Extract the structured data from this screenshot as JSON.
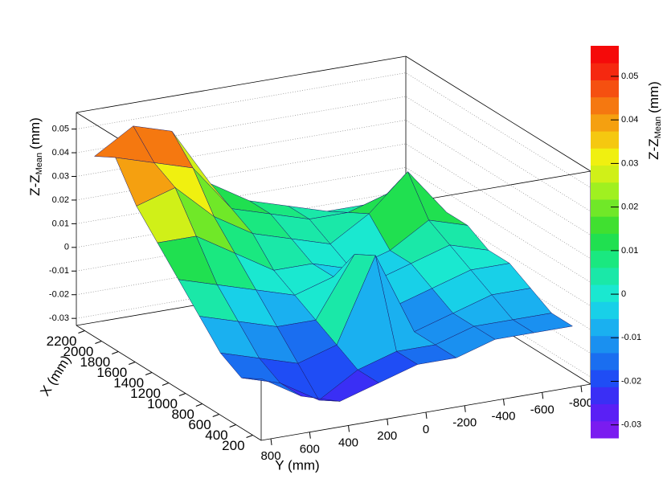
{
  "chart_data": {
    "type": "surface3d",
    "xlabel": "X (mm)",
    "ylabel": "Y (mm)",
    "zlabel": {
      "main": "Z-Z",
      "sub": "Mean",
      "unit": "(mm)"
    },
    "colorbar_label": {
      "main": "Z-Z",
      "sub": "Mean",
      "unit": "(mm)"
    },
    "xlim": [
      100,
      2300
    ],
    "ylim": [
      850,
      -850
    ],
    "zlim": [
      -0.033,
      0.057
    ],
    "xticks": [
      200,
      400,
      600,
      800,
      1000,
      1200,
      1400,
      1600,
      1800,
      2000,
      2200
    ],
    "yticks": [
      800,
      600,
      400,
      200,
      0,
      -200,
      -400,
      -600,
      -800
    ],
    "zticks": [
      -0.03,
      -0.02,
      -0.01,
      0,
      0.01,
      0.02,
      0.03,
      0.04,
      0.05
    ],
    "colorbar_ticks": [
      -0.03,
      -0.02,
      -0.01,
      0,
      0.01,
      0.02,
      0.03,
      0.04,
      0.05
    ],
    "grid": true,
    "palette": [
      "#7a1cf0",
      "#5a20f5",
      "#3a2ff5",
      "#1f4df5",
      "#1a6ef0",
      "#1a90f0",
      "#1ab0f0",
      "#18d0e8",
      "#1ae8d0",
      "#1ae8a8",
      "#1ae880",
      "#20e050",
      "#40e030",
      "#70e828",
      "#a0f020",
      "#d0f018",
      "#f0f010",
      "#f5c810",
      "#f5a010",
      "#f57810",
      "#f55010",
      "#f52810",
      "#f50a0a"
    ],
    "x": [
      200,
      450,
      700,
      950,
      1200,
      1450,
      1700,
      1950,
      2200
    ],
    "y": [
      800,
      600,
      400,
      200,
      0,
      -200,
      -400,
      -600,
      -800
    ],
    "z": [
      [
        -0.01,
        -0.02,
        -0.025,
        -0.02,
        -0.015,
        -0.015,
        -0.01,
        -0.01,
        -0.01
      ],
      [
        -0.015,
        -0.02,
        -0.03,
        -0.02,
        -0.015,
        -0.015,
        -0.01,
        -0.01,
        -0.01
      ],
      [
        -0.01,
        -0.015,
        -0.02,
        -0.015,
        0.02,
        -0.015,
        -0.01,
        -0.005,
        -0.005
      ],
      [
        0,
        -0.005,
        -0.01,
        -0.01,
        0.015,
        -0.01,
        -0.005,
        0,
        0
      ],
      [
        0.01,
        0.005,
        0,
        -0.005,
        0,
        -0.005,
        0,
        0.005,
        0
      ],
      [
        0.02,
        0.02,
        0.01,
        0,
        0,
        -0.005,
        0,
        0.01,
        0.005
      ],
      [
        0.03,
        0.035,
        0.02,
        0.01,
        0.005,
        0,
        0.01,
        0.025,
        0.005
      ],
      [
        0.045,
        0.04,
        0.035,
        0.015,
        0.01,
        0.005,
        0.005,
        0.01,
        0
      ],
      [
        0.04,
        0.05,
        0.045,
        0.02,
        0.01,
        0.005,
        0,
        0,
        0
      ]
    ]
  }
}
